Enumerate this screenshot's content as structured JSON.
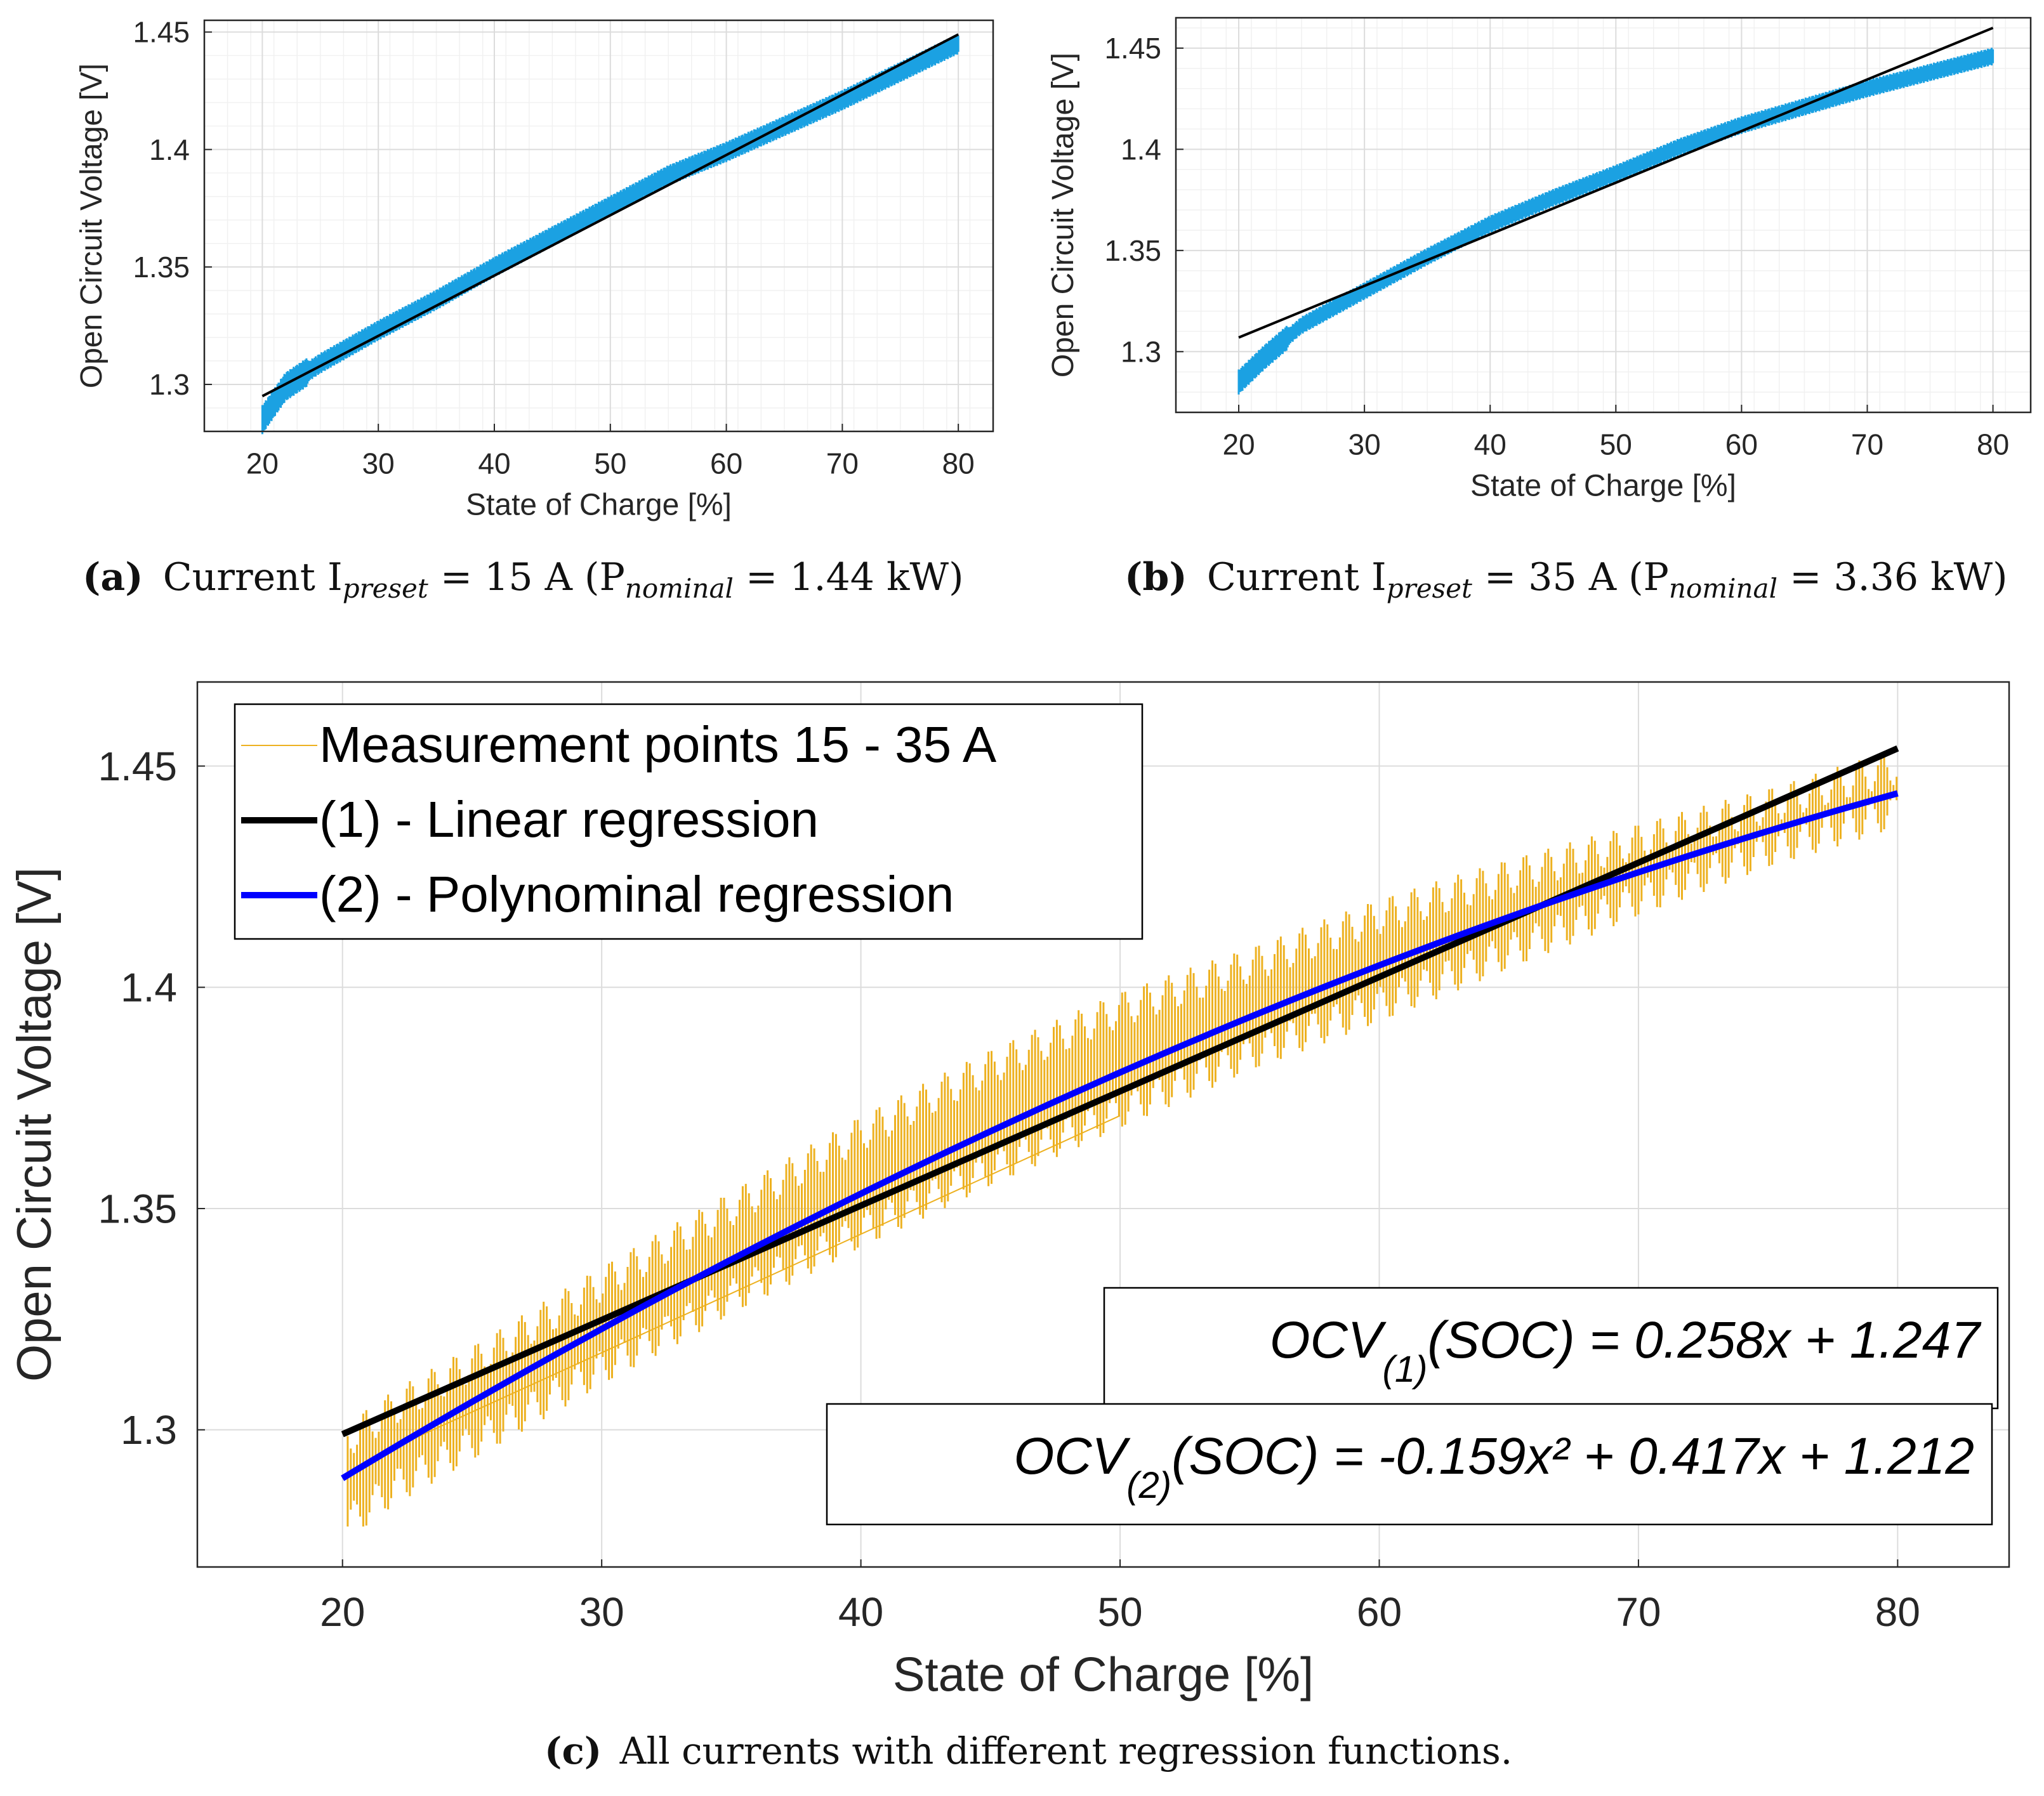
{
  "figure": {
    "caption_a": {
      "label": "(a)",
      "text_pre": "Current I",
      "sub1": "preset",
      "text_mid": " = 15 A (P",
      "sub2": "nominal",
      "text_post": " = 1.44 kW)"
    },
    "caption_b": {
      "label": "(b)",
      "text_pre": "Current I",
      "sub1": "preset",
      "text_mid": " = 35 A (P",
      "sub2": "nominal",
      "text_post": " = 3.36 kW)"
    },
    "caption_c": {
      "label": "(c)",
      "text": "All currents with different regression functions."
    },
    "colors": {
      "meas_blue": "#1BA1E2",
      "meas_gold": "#EDB120",
      "linear": "#000000",
      "poly": "#0000FF",
      "grid": "#e6e6e6",
      "axis": "#262626"
    }
  },
  "chart_data": [
    {
      "id": "a",
      "type": "scatter",
      "xlabel": "State of Charge [%]",
      "ylabel": "Open Circuit Voltage [V]",
      "xlim": [
        15,
        83
      ],
      "ylim": [
        1.28,
        1.455
      ],
      "xticks": [
        "20",
        "30",
        "40",
        "50",
        "60",
        "70",
        "80"
      ],
      "yticks": [
        "1.3",
        "1.35",
        "1.4",
        "1.45"
      ],
      "grid": true,
      "series": [
        {
          "name": "Measurement points",
          "kind": "band",
          "x": [
            20,
            22,
            25,
            30,
            35,
            40,
            45,
            50,
            55,
            60,
            65,
            70,
            75,
            80
          ],
          "y": [
            1.285,
            1.299,
            1.309,
            1.323,
            1.336,
            1.35,
            1.363,
            1.376,
            1.389,
            1.399,
            1.41,
            1.421,
            1.433,
            1.445
          ]
        },
        {
          "name": "Linear regression",
          "kind": "line",
          "x": [
            20,
            80
          ],
          "y": [
            1.295,
            1.449
          ]
        }
      ]
    },
    {
      "id": "b",
      "type": "scatter",
      "xlabel": "State of Charge [%]",
      "ylabel": "Open Circuit Voltage [V]",
      "xlim": [
        15,
        83
      ],
      "ylim": [
        1.27,
        1.465
      ],
      "xticks": [
        "20",
        "30",
        "40",
        "50",
        "60",
        "70",
        "80"
      ],
      "yticks": [
        "1.3",
        "1.35",
        "1.4",
        "1.45"
      ],
      "grid": true,
      "series": [
        {
          "name": "Measurement points",
          "kind": "band",
          "x": [
            20,
            22,
            25,
            30,
            35,
            40,
            45,
            50,
            55,
            60,
            65,
            70,
            75,
            80
          ],
          "y": [
            1.285,
            1.297,
            1.313,
            1.33,
            1.347,
            1.363,
            1.376,
            1.388,
            1.401,
            1.412,
            1.421,
            1.43,
            1.438,
            1.446
          ]
        },
        {
          "name": "Linear regression",
          "kind": "line",
          "x": [
            20,
            80
          ],
          "y": [
            1.307,
            1.46
          ]
        }
      ]
    },
    {
      "id": "c",
      "type": "scatter",
      "xlabel": "State of Charge [%]",
      "ylabel": "Open Circuit Voltage [V]",
      "xlim": [
        14.4,
        84.3
      ],
      "ylim": [
        1.269,
        1.469
      ],
      "xticks": [
        "20",
        "30",
        "40",
        "50",
        "60",
        "70",
        "80"
      ],
      "yticks": [
        "1.3",
        "1.35",
        "1.4",
        "1.45"
      ],
      "grid": true,
      "legend": {
        "position": "top-left",
        "entries": [
          "Measurement points 15 - 35 A",
          "(1) - Linear regression",
          "(2) - Polynominal regression"
        ]
      },
      "annotations": [
        {
          "pre": "OCV",
          "sub": "(1)",
          "post": "(SOC) = 0.258x + 1.247"
        },
        {
          "pre": "OCV",
          "sub": "(2)",
          "post": "(SOC) = -0.159x² + 0.417x + 1.212"
        }
      ],
      "series": [
        {
          "name": "Measurement points 15 - 35 A",
          "kind": "band",
          "x": [
            20,
            22,
            25,
            30,
            35,
            40,
            45,
            50,
            55,
            60,
            65,
            70,
            75,
            80
          ],
          "upper": [
            1.297,
            1.305,
            1.315,
            1.333,
            1.35,
            1.367,
            1.382,
            1.395,
            1.405,
            1.416,
            1.425,
            1.433,
            1.441,
            1.45
          ],
          "lower": [
            1.278,
            1.287,
            1.297,
            1.314,
            1.33,
            1.345,
            1.359,
            1.372,
            1.385,
            1.396,
            1.408,
            1.42,
            1.431,
            1.44
          ]
        },
        {
          "name": "(1) - Linear regression",
          "kind": "line",
          "x": [
            20,
            80
          ],
          "y": [
            1.299,
            1.454
          ]
        },
        {
          "name": "(2) - Polynominal regression",
          "kind": "curve",
          "coeffs": [
            -0.159,
            0.417,
            1.212
          ],
          "x": [
            20,
            80
          ]
        }
      ]
    }
  ]
}
